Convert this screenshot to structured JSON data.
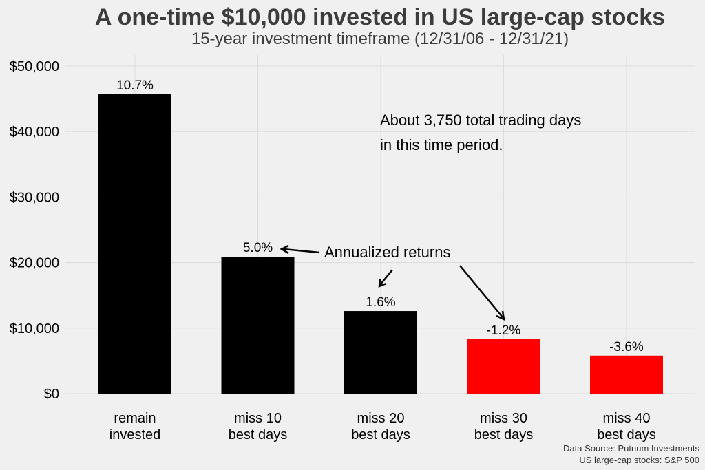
{
  "chart_data": {
    "type": "bar",
    "title": "A one-time $10,000 invested in US large-cap stocks",
    "subtitle": "15-year investment timeframe (12/31/06 - 12/31/21)",
    "categories": [
      [
        "remain",
        "invested"
      ],
      [
        "miss 10",
        "best days"
      ],
      [
        "miss 20",
        "best days"
      ],
      [
        "miss 30",
        "best days"
      ],
      [
        "miss 40",
        "best days"
      ]
    ],
    "values": [
      45700,
      20900,
      12600,
      8300,
      5800
    ],
    "value_labels": [
      "10.7%",
      "5.0%",
      "1.6%",
      "-1.2%",
      "-3.6%"
    ],
    "colors": [
      "#000000",
      "#000000",
      "#000000",
      "#ff0000",
      "#ff0000"
    ],
    "ylim": [
      0,
      52000
    ],
    "yticks": [
      0,
      10000,
      20000,
      30000,
      40000,
      50000
    ],
    "ytick_labels": [
      "$0",
      "$10,000",
      "$20,000",
      "$30,000",
      "$40,000",
      "$50,000"
    ],
    "grid": true,
    "xlabel": "",
    "ylabel": "",
    "annotations": {
      "trading_days": [
        "About 3,750 total trading days",
        "in this time period."
      ],
      "annualized": "Annualized returns"
    },
    "source": [
      "Data Source: Putnum Investments",
      "US large-cap stocks: S&P 500"
    ]
  }
}
